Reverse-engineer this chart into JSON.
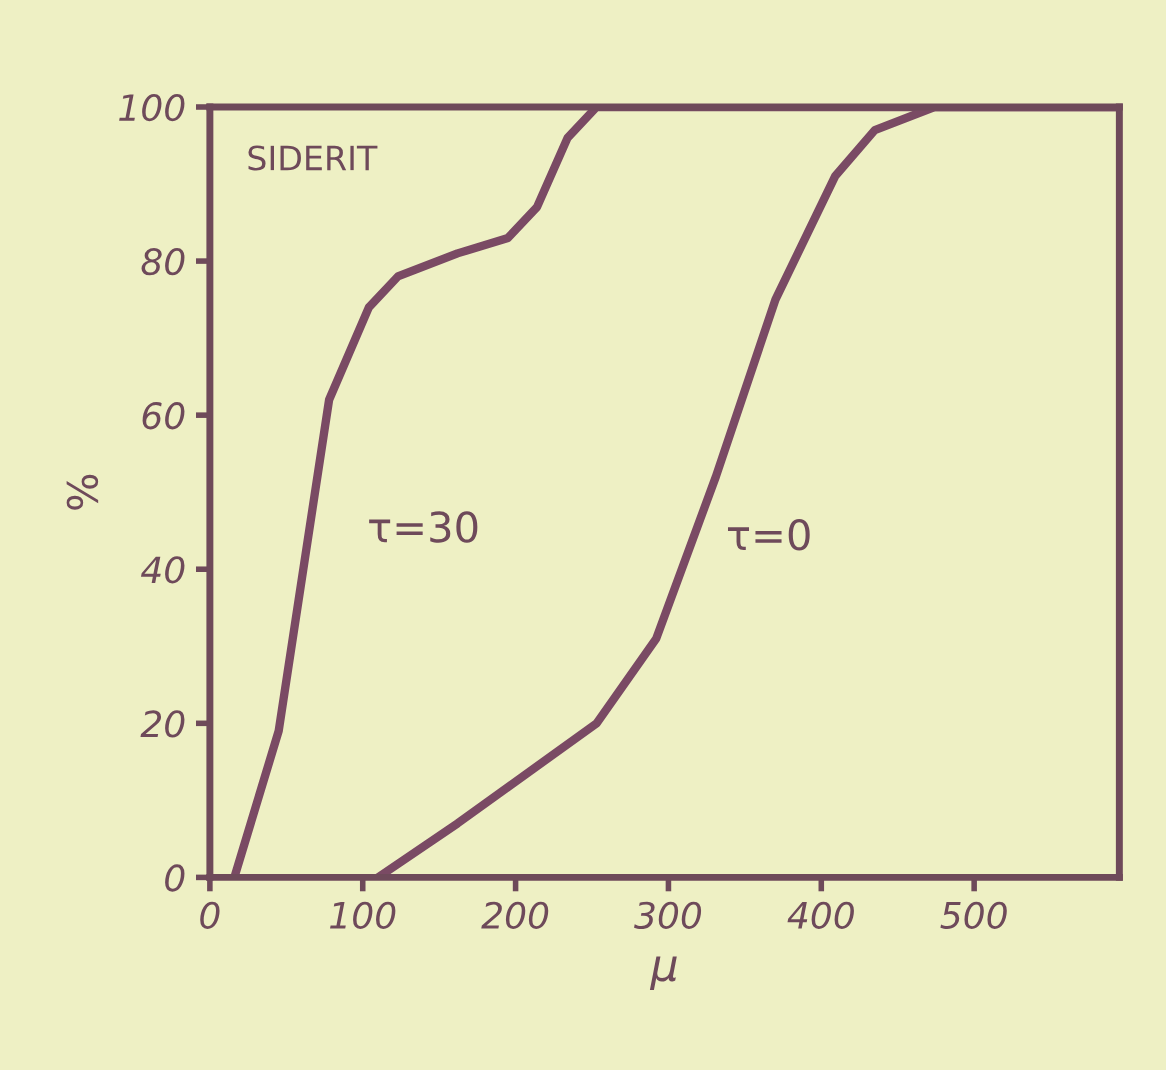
{
  "chart_data": {
    "type": "line",
    "xlabel": "μ",
    "ylabel": "%",
    "annotations": [
      "SIDERIT",
      "τ=30",
      "τ=0"
    ],
    "series": [
      {
        "color": "#7a4a64",
        "x": [
          16,
          45,
          78,
          104,
          123,
          162,
          195,
          214,
          234,
          253,
          595
        ],
        "values": [
          0,
          19,
          62,
          74,
          78,
          81,
          83,
          87,
          96,
          100,
          100
        ]
      },
      {
        "color": "#7a4a64",
        "x": [
          110,
          162,
          253,
          292,
          331,
          370,
          409,
          435,
          474,
          595
        ],
        "values": [
          0,
          7,
          20,
          31,
          52,
          75,
          91,
          97,
          100,
          100
        ]
      }
    ],
    "xlim": [
      0,
      595
    ],
    "ylim": [
      0,
      100
    ],
    "xticks": [
      0,
      100,
      200,
      300,
      400,
      500
    ],
    "yticks": [
      0,
      20,
      40,
      60,
      80,
      100
    ],
    "grid": false,
    "legend": false
  }
}
